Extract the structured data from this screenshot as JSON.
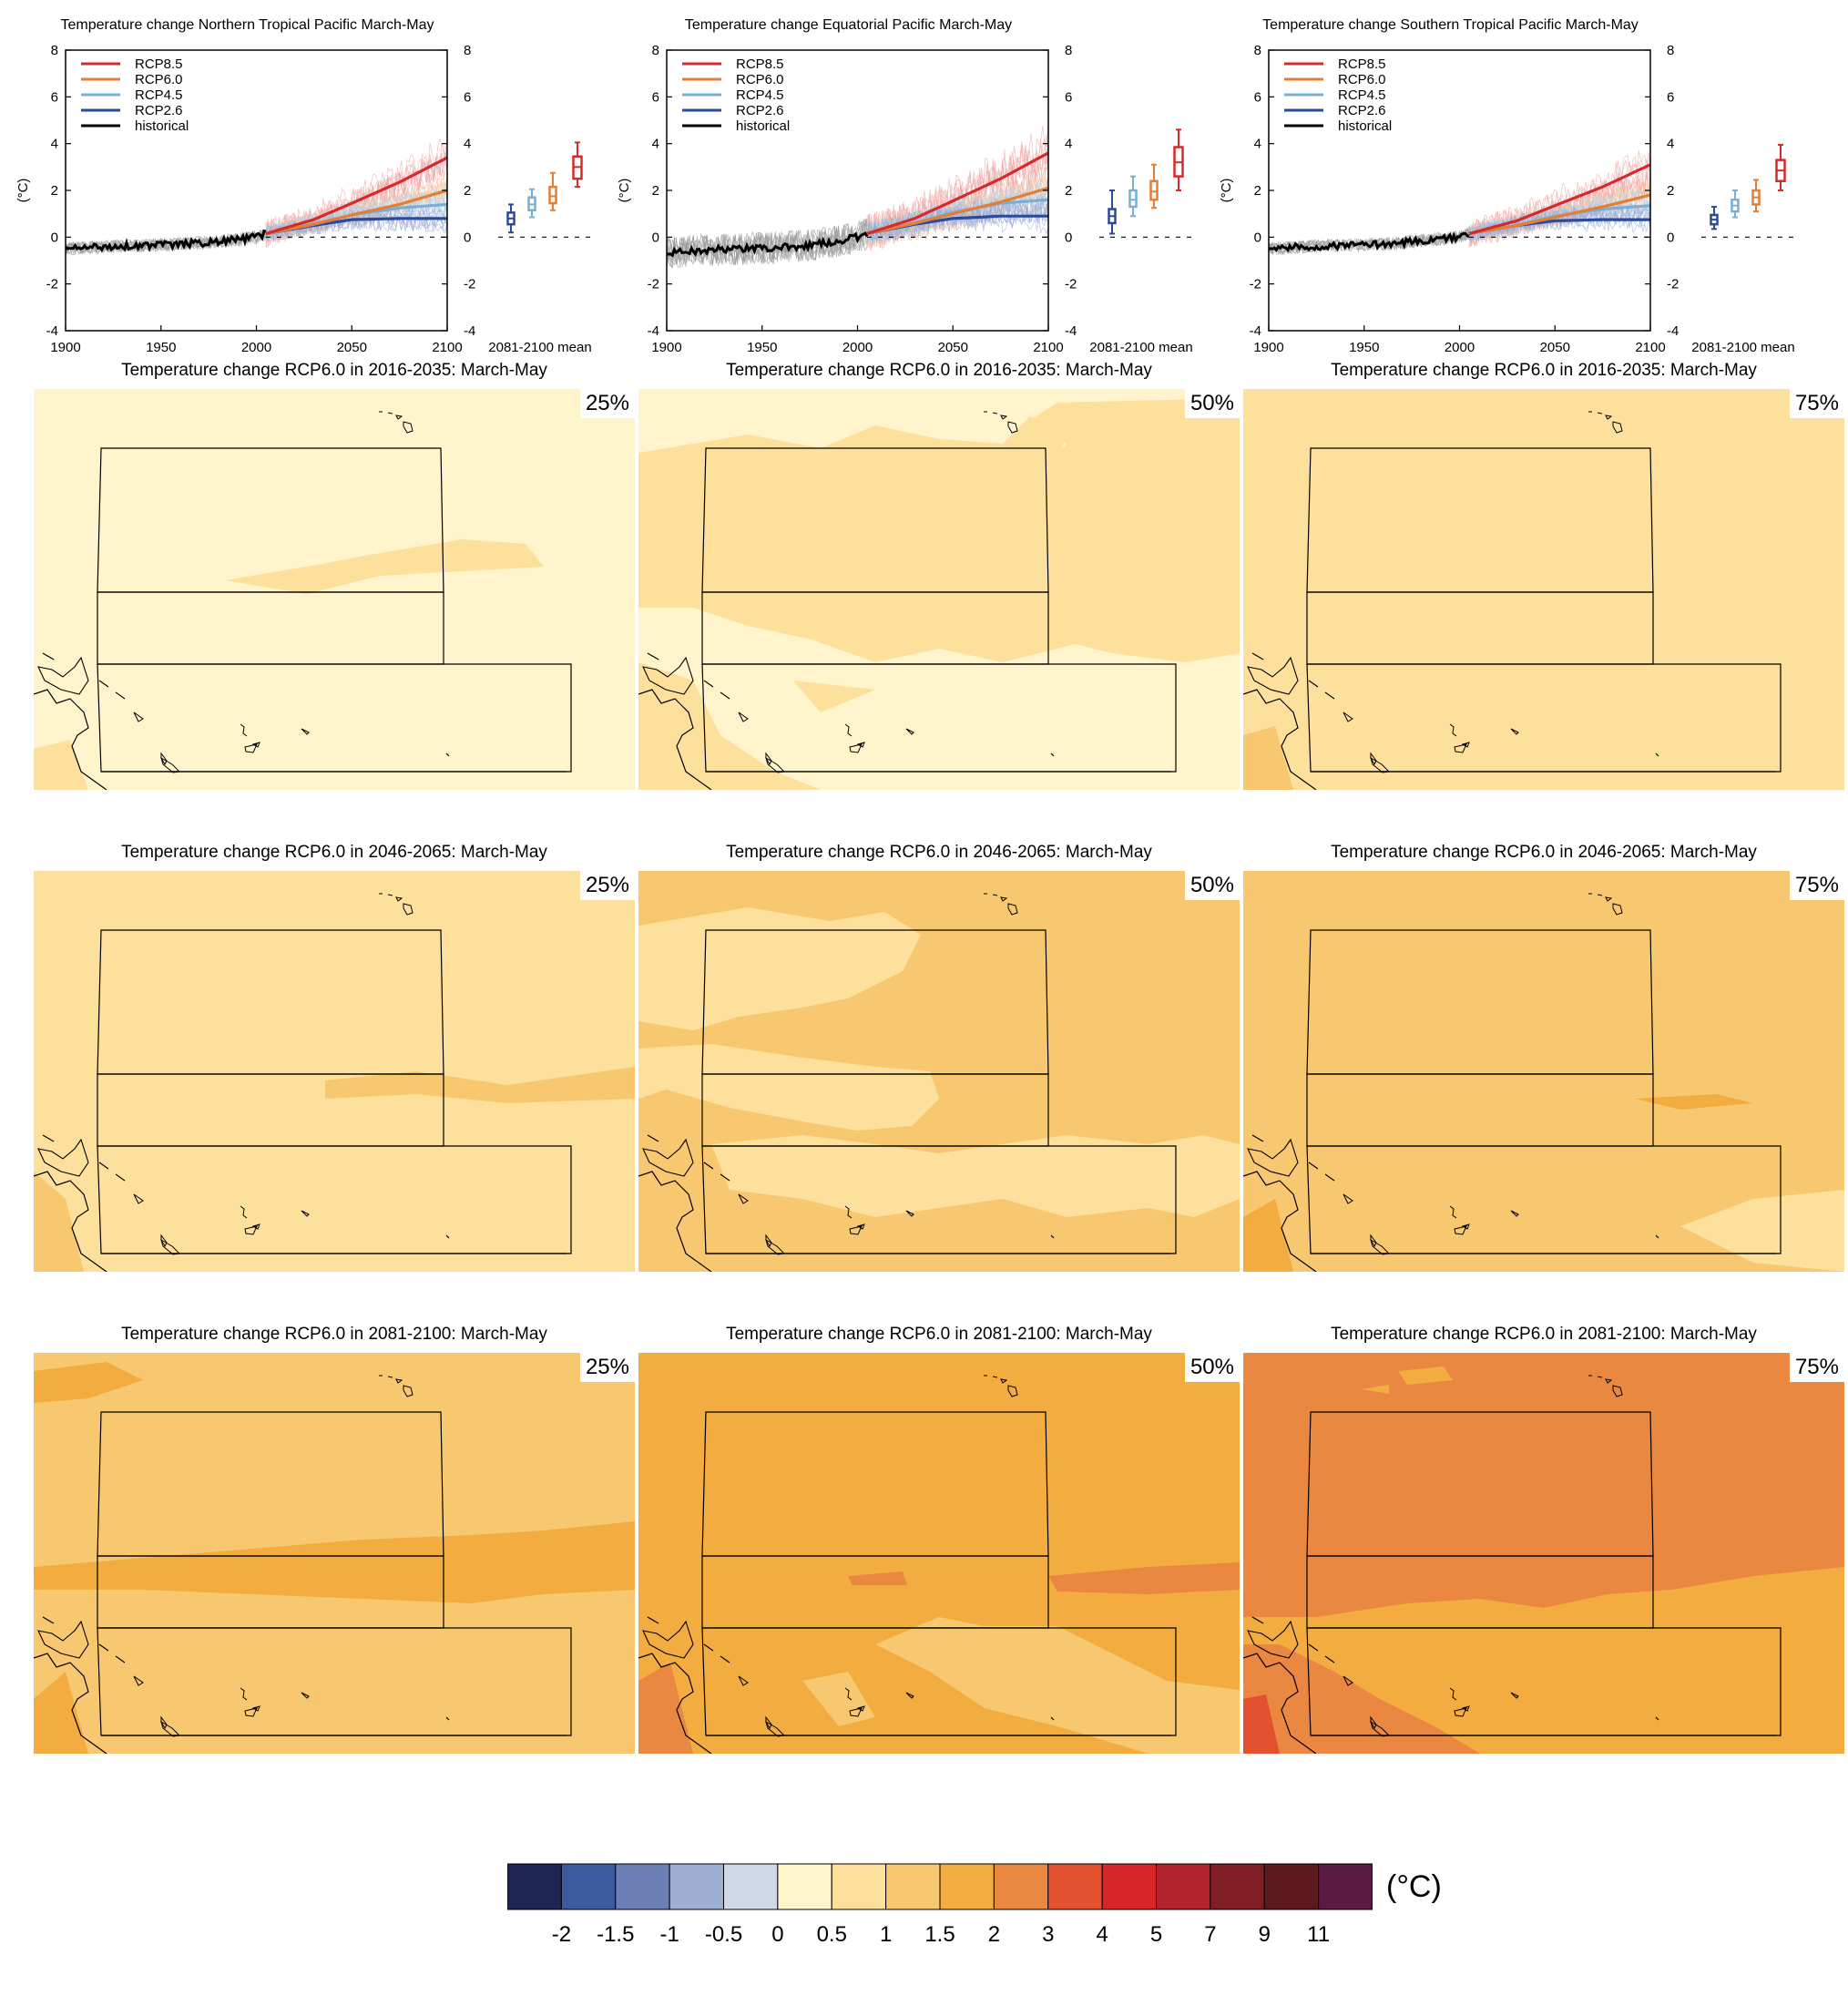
{
  "timeseries": {
    "titles": [
      "Temperature change Northern Tropical Pacific March-May",
      "Temperature change Equatorial Pacific March-May",
      "Temperature change Southern Tropical Pacific March-May"
    ],
    "ylabel": "(°C)",
    "yticks": [
      "-4",
      "-2",
      "0",
      "2",
      "4",
      "6",
      "8"
    ],
    "xticks": [
      "1900",
      "1950",
      "2000",
      "2050",
      "2100"
    ],
    "mean_label": "2081-2100 mean",
    "legend": [
      "RCP8.5",
      "RCP6.0",
      "RCP4.5",
      "RCP2.6",
      "historical"
    ]
  },
  "maps": {
    "panels": [
      {
        "title": "Temperature change RCP6.0 in 2016-2035: March-May",
        "pct": "25%"
      },
      {
        "title": "Temperature change RCP6.0 in 2016-2035: March-May",
        "pct": "50%"
      },
      {
        "title": "Temperature change RCP6.0 in 2016-2035: March-May",
        "pct": "75%"
      },
      {
        "title": "Temperature change RCP6.0 in 2046-2065: March-May",
        "pct": "25%"
      },
      {
        "title": "Temperature change RCP6.0 in 2046-2065: March-May",
        "pct": "50%"
      },
      {
        "title": "Temperature change RCP6.0 in 2046-2065: March-May",
        "pct": "75%"
      },
      {
        "title": "Temperature change RCP6.0 in 2081-2100: March-May",
        "pct": "25%"
      },
      {
        "title": "Temperature change RCP6.0 in 2081-2100: March-May",
        "pct": "50%"
      },
      {
        "title": "Temperature change RCP6.0 in 2081-2100: March-May",
        "pct": "75%"
      }
    ]
  },
  "colorbar": {
    "unit": "(°C)",
    "ticks": [
      "-2",
      "-1.5",
      "-1",
      "-0.5",
      "0",
      "0.5",
      "1",
      "1.5",
      "2",
      "3",
      "4",
      "5",
      "7",
      "9",
      "11"
    ],
    "colors": [
      "#1f2553",
      "#3e5a9f",
      "#6b7fb5",
      "#9db0d4",
      "#cfd8e6",
      "#fff4cc",
      "#fde09c",
      "#f8c870",
      "#f2ac40",
      "#ea8740",
      "#e2522f",
      "#d62628",
      "#b3222f",
      "#7f1e24",
      "#5c1a1e",
      "#5a1b42"
    ]
  },
  "chart_data": [
    {
      "type": "line",
      "title": "Temperature change Northern Tropical Pacific March-May",
      "ylabel": "(°C)",
      "xlim": [
        1900,
        2100
      ],
      "ylim": [
        -4,
        8
      ],
      "series": [
        {
          "name": "historical",
          "color": "#000000",
          "x": [
            1900,
            1920,
            1940,
            1960,
            1980,
            2000,
            2005
          ],
          "values": [
            -0.5,
            -0.4,
            -0.35,
            -0.3,
            -0.2,
            0.0,
            0.15
          ]
        },
        {
          "name": "RCP2.6",
          "color": "#2c4a9a",
          "x": [
            2005,
            2030,
            2050,
            2075,
            2100
          ],
          "values": [
            0.15,
            0.5,
            0.75,
            0.8,
            0.8
          ]
        },
        {
          "name": "RCP4.5",
          "color": "#79aed6",
          "x": [
            2005,
            2030,
            2050,
            2075,
            2100
          ],
          "values": [
            0.15,
            0.55,
            0.95,
            1.25,
            1.4
          ]
        },
        {
          "name": "RCP6.0",
          "color": "#e47e34",
          "x": [
            2005,
            2030,
            2050,
            2075,
            2100
          ],
          "values": [
            0.15,
            0.55,
            0.95,
            1.4,
            2.0
          ]
        },
        {
          "name": "RCP8.5",
          "color": "#d62a2a",
          "x": [
            2005,
            2030,
            2050,
            2075,
            2100
          ],
          "values": [
            0.15,
            0.75,
            1.45,
            2.35,
            3.4
          ]
        }
      ],
      "boxes_2081_2100": [
        {
          "name": "RCP2.6",
          "whislo": 0.2,
          "q1": 0.55,
          "med": 0.8,
          "q3": 1.05,
          "whishi": 1.4
        },
        {
          "name": "RCP4.5",
          "whislo": 0.85,
          "q1": 1.15,
          "med": 1.4,
          "q3": 1.7,
          "whishi": 2.05
        },
        {
          "name": "RCP6.0",
          "whislo": 1.15,
          "q1": 1.45,
          "med": 1.75,
          "q3": 2.15,
          "whishi": 2.75
        },
        {
          "name": "RCP8.5",
          "whislo": 2.15,
          "q1": 2.5,
          "med": 3.0,
          "q3": 3.45,
          "whishi": 4.05
        }
      ]
    },
    {
      "type": "line",
      "title": "Temperature change Equatorial Pacific March-May",
      "ylabel": "(°C)",
      "xlim": [
        1900,
        2100
      ],
      "ylim": [
        -4,
        8
      ],
      "series": [
        {
          "name": "historical",
          "color": "#000000",
          "x": [
            1900,
            1920,
            1940,
            1960,
            1980,
            2000,
            2005
          ],
          "values": [
            -0.65,
            -0.55,
            -0.5,
            -0.45,
            -0.3,
            0.0,
            0.15
          ]
        },
        {
          "name": "RCP2.6",
          "color": "#2c4a9a",
          "x": [
            2005,
            2030,
            2050,
            2075,
            2100
          ],
          "values": [
            0.15,
            0.55,
            0.8,
            0.9,
            0.9
          ]
        },
        {
          "name": "RCP4.5",
          "color": "#79aed6",
          "x": [
            2005,
            2030,
            2050,
            2075,
            2100
          ],
          "values": [
            0.15,
            0.6,
            1.05,
            1.45,
            1.6
          ]
        },
        {
          "name": "RCP6.0",
          "color": "#e47e34",
          "x": [
            2005,
            2030,
            2050,
            2075,
            2100
          ],
          "values": [
            0.15,
            0.6,
            1.0,
            1.5,
            2.1
          ]
        },
        {
          "name": "RCP8.5",
          "color": "#d62a2a",
          "x": [
            2005,
            2030,
            2050,
            2075,
            2100
          ],
          "values": [
            0.15,
            0.8,
            1.55,
            2.5,
            3.6
          ]
        }
      ],
      "boxes_2081_2100": [
        {
          "name": "RCP2.6",
          "whislo": 0.15,
          "q1": 0.6,
          "med": 0.9,
          "q3": 1.2,
          "whishi": 2.0
        },
        {
          "name": "RCP4.5",
          "whislo": 0.9,
          "q1": 1.3,
          "med": 1.6,
          "q3": 2.0,
          "whishi": 2.6
        },
        {
          "name": "RCP6.0",
          "whislo": 1.25,
          "q1": 1.6,
          "med": 1.95,
          "q3": 2.4,
          "whishi": 3.1
        },
        {
          "name": "RCP8.5",
          "whislo": 2.0,
          "q1": 2.6,
          "med": 3.2,
          "q3": 3.85,
          "whishi": 4.6
        }
      ]
    },
    {
      "type": "line",
      "title": "Temperature change Southern Tropical Pacific March-May",
      "ylabel": "(°C)",
      "xlim": [
        1900,
        2100
      ],
      "ylim": [
        -4,
        8
      ],
      "series": [
        {
          "name": "historical",
          "color": "#000000",
          "x": [
            1900,
            1920,
            1940,
            1960,
            1980,
            2000,
            2005
          ],
          "values": [
            -0.5,
            -0.4,
            -0.35,
            -0.3,
            -0.15,
            0.0,
            0.15
          ]
        },
        {
          "name": "RCP2.6",
          "color": "#2c4a9a",
          "x": [
            2005,
            2030,
            2050,
            2075,
            2100
          ],
          "values": [
            0.15,
            0.5,
            0.7,
            0.75,
            0.75
          ]
        },
        {
          "name": "RCP4.5",
          "color": "#79aed6",
          "x": [
            2005,
            2030,
            2050,
            2075,
            2100
          ],
          "values": [
            0.15,
            0.5,
            0.9,
            1.2,
            1.35
          ]
        },
        {
          "name": "RCP6.0",
          "color": "#e47e34",
          "x": [
            2005,
            2030,
            2050,
            2075,
            2100
          ],
          "values": [
            0.15,
            0.5,
            0.85,
            1.3,
            1.8
          ]
        },
        {
          "name": "RCP8.5",
          "color": "#d62a2a",
          "x": [
            2005,
            2030,
            2050,
            2075,
            2100
          ],
          "values": [
            0.15,
            0.7,
            1.35,
            2.15,
            3.1
          ]
        }
      ],
      "boxes_2081_2100": [
        {
          "name": "RCP2.6",
          "whislo": 0.35,
          "q1": 0.55,
          "med": 0.75,
          "q3": 0.95,
          "whishi": 1.3
        },
        {
          "name": "RCP4.5",
          "whislo": 0.85,
          "q1": 1.1,
          "med": 1.35,
          "q3": 1.6,
          "whishi": 2.0
        },
        {
          "name": "RCP6.0",
          "whislo": 1.1,
          "q1": 1.4,
          "med": 1.7,
          "q3": 2.0,
          "whishi": 2.45
        },
        {
          "name": "RCP8.5",
          "whislo": 2.0,
          "q1": 2.4,
          "med": 2.85,
          "q3": 3.3,
          "whishi": 3.95
        }
      ]
    }
  ]
}
